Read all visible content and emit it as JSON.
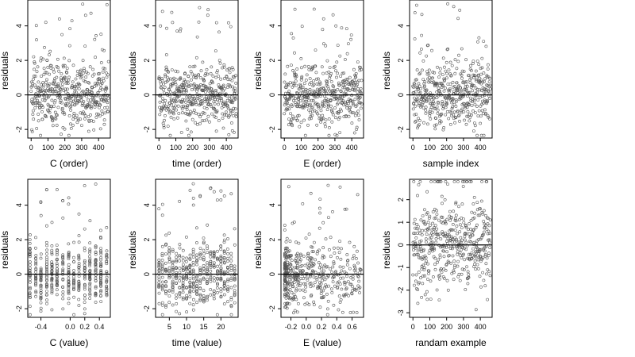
{
  "chart_data": [
    {
      "type": "scatter",
      "xlabel": "C (order)",
      "ylabel": "residuals",
      "xlim": [
        -20,
        470
      ],
      "ylim": [
        -2.5,
        5.5
      ],
      "xticks": [
        0,
        100,
        200,
        300,
        400
      ],
      "yticks": [
        -2,
        0,
        2,
        4
      ],
      "yticklabels": [
        "-2",
        "0",
        "2",
        "4"
      ],
      "hline": 0,
      "x_kind": "order",
      "n": 460
    },
    {
      "type": "scatter",
      "xlabel": "time (order)",
      "ylabel": "residuals",
      "xlim": [
        -20,
        470
      ],
      "ylim": [
        -2.5,
        5.5
      ],
      "xticks": [
        0,
        100,
        200,
        300,
        400
      ],
      "yticks": [
        -2,
        0,
        2,
        4
      ],
      "yticklabels": [
        "-2",
        "0",
        "2",
        "4"
      ],
      "hline": 0,
      "x_kind": "order",
      "n": 460
    },
    {
      "type": "scatter",
      "xlabel": "E (order)",
      "ylabel": "residuals",
      "xlim": [
        -20,
        470
      ],
      "ylim": [
        -2.5,
        5.5
      ],
      "xticks": [
        0,
        100,
        200,
        300,
        400
      ],
      "yticks": [
        -2,
        0,
        2,
        4
      ],
      "yticklabels": [
        "-2",
        "0",
        "2",
        "4"
      ],
      "hline": 0,
      "x_kind": "order",
      "n": 460
    },
    {
      "type": "scatter",
      "xlabel": "sample index",
      "ylabel": "residuals",
      "xlim": [
        -20,
        470
      ],
      "ylim": [
        -2.5,
        5.5
      ],
      "xticks": [
        0,
        100,
        200,
        300,
        400
      ],
      "yticks": [
        -2,
        0,
        2,
        4
      ],
      "yticklabels": [
        "-2",
        "0",
        "2",
        "4"
      ],
      "hline": 0,
      "x_kind": "order",
      "n": 460
    },
    {
      "type": "scatter",
      "xlabel": "C (value)",
      "ylabel": "residuals",
      "xlim": [
        -0.58,
        0.55
      ],
      "ylim": [
        -2.5,
        5.5
      ],
      "xticks": [
        -0.4,
        0.0,
        0.2,
        0.4
      ],
      "xticklabels": [
        "-0.4",
        "0.0",
        "0.2",
        "0.4"
      ],
      "yticks": [
        -2,
        0,
        2,
        4
      ],
      "yticklabels": [
        "-2",
        "0",
        "2",
        "4"
      ],
      "hline": 0,
      "x_kind": "levels",
      "x_levels": [
        -0.55,
        -0.47,
        -0.4,
        -0.32,
        -0.25,
        -0.18,
        -0.1,
        -0.02,
        0.05,
        0.12,
        0.2,
        0.27,
        0.35,
        0.42,
        0.5
      ],
      "n": 460
    },
    {
      "type": "scatter",
      "xlabel": "time (value)",
      "ylabel": "residuals",
      "xlim": [
        1,
        25
      ],
      "ylim": [
        -2.5,
        5.5
      ],
      "xticks": [
        5,
        10,
        15,
        20
      ],
      "yticks": [
        -2,
        0,
        2,
        4
      ],
      "yticklabels": [
        "-2",
        "0",
        "2",
        "4"
      ],
      "hline": 0,
      "x_kind": "levels",
      "x_levels": [
        2,
        3,
        4,
        5,
        6,
        7,
        8,
        9,
        10,
        11,
        12,
        13,
        14,
        15,
        16,
        17,
        18,
        19,
        20,
        21,
        22,
        23,
        24
      ],
      "n": 460
    },
    {
      "type": "scatter",
      "xlabel": "E (value)",
      "ylabel": "residuals",
      "xlim": [
        -0.33,
        0.75
      ],
      "ylim": [
        -2.5,
        5.5
      ],
      "xticks": [
        -0.2,
        0.0,
        0.2,
        0.4,
        0.6
      ],
      "xticklabels": [
        "-0.2",
        "0.0",
        "0.2",
        "0.4",
        "0.6"
      ],
      "yticks": [
        -2,
        0,
        2,
        4
      ],
      "yticklabels": [
        "-2",
        "0",
        "2",
        "4"
      ],
      "hline": 0,
      "x_kind": "skewed",
      "x_min": -0.28,
      "x_max": 0.72,
      "n": 460
    },
    {
      "type": "scatter",
      "xlabel": "randam example",
      "ylabel": "residuals",
      "xlim": [
        -20,
        470
      ],
      "ylim": [
        -3.2,
        2.9
      ],
      "xticks": [
        0,
        100,
        200,
        300,
        400
      ],
      "yticks": [
        -3,
        -2,
        -1,
        0,
        1,
        2
      ],
      "yticklabels": [
        "-3",
        "-2",
        "-1",
        "0",
        "1",
        "2"
      ],
      "hline": 0,
      "x_kind": "order",
      "n": 460
    }
  ]
}
